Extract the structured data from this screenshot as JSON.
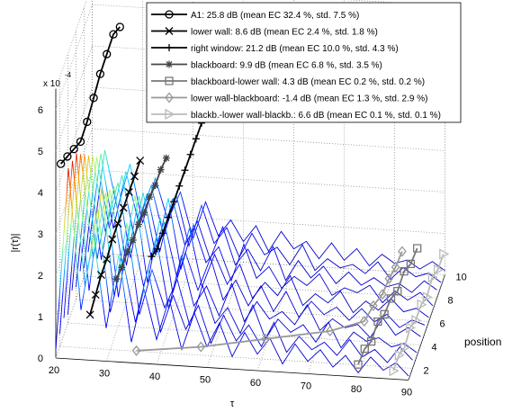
{
  "chart_data": {
    "type": "waterfall",
    "xlabel": "τ",
    "ylabel": "position",
    "zlabel": "|r(τ)|",
    "zexponent": {
      "base": "x 10",
      "power": "-4"
    },
    "xlim": [
      20,
      90
    ],
    "xticks": [
      20,
      30,
      40,
      50,
      60,
      70,
      80,
      90
    ],
    "ylim": [
      1,
      10
    ],
    "yticks": [
      2,
      4,
      6,
      8,
      10
    ],
    "zlim": [
      0,
      6.5
    ],
    "zticks": [
      0,
      1,
      2,
      3,
      4,
      5,
      6
    ],
    "grid": true,
    "legend": "top-right",
    "positions": [
      1,
      2,
      3,
      4,
      5,
      6,
      7,
      8,
      9,
      10
    ],
    "tau": [
      20,
      22.5,
      25,
      27.5,
      30,
      32.5,
      35,
      37.5,
      40,
      42.5,
      45,
      47.5,
      50,
      52.5,
      55,
      57.5,
      60,
      62.5,
      65,
      67.5,
      70,
      72.5,
      75,
      77.5,
      80,
      82.5,
      85,
      87.5,
      90
    ],
    "traces": [
      [
        0.2,
        4.6,
        1.2,
        3.0,
        0.8,
        2.6,
        0.5,
        1.8,
        0.6,
        1.6,
        0.4,
        1.3,
        0.5,
        1.1,
        0.3,
        0.9,
        0.4,
        0.8,
        0.2,
        0.7,
        0.3,
        0.6,
        0.2,
        0.5,
        0.1,
        0.5,
        0.2,
        0.4,
        0.1
      ],
      [
        0.3,
        4.5,
        1.5,
        3.4,
        0.9,
        2.2,
        0.7,
        2.0,
        0.5,
        1.4,
        0.6,
        1.2,
        0.3,
        1.0,
        0.4,
        0.8,
        0.3,
        0.9,
        0.2,
        0.6,
        0.3,
        0.5,
        0.2,
        0.6,
        0.2,
        0.4,
        0.1,
        0.5,
        0.2
      ],
      [
        0.4,
        4.4,
        1.1,
        3.6,
        1.0,
        2.8,
        0.6,
        1.7,
        0.8,
        1.5,
        0.4,
        1.4,
        0.5,
        0.9,
        0.3,
        1.0,
        0.2,
        0.7,
        0.4,
        0.6,
        0.2,
        0.7,
        0.1,
        0.5,
        0.3,
        0.4,
        0.2,
        0.3,
        0.1
      ],
      [
        0.2,
        4.1,
        1.6,
        3.2,
        0.7,
        2.5,
        1.0,
        2.2,
        0.5,
        1.8,
        0.6,
        1.1,
        0.4,
        1.2,
        0.3,
        0.8,
        0.4,
        0.6,
        0.3,
        0.8,
        0.2,
        0.5,
        0.3,
        0.4,
        0.1,
        0.6,
        0.2,
        0.4,
        0.2
      ],
      [
        0.5,
        3.8,
        1.3,
        3.0,
        1.2,
        2.9,
        0.8,
        2.4,
        0.6,
        1.6,
        0.7,
        1.5,
        0.5,
        1.0,
        0.4,
        0.9,
        0.3,
        0.8,
        0.2,
        0.6,
        0.3,
        0.5,
        0.2,
        0.5,
        0.2,
        0.4,
        0.1,
        0.3,
        0.2
      ],
      [
        0.3,
        3.5,
        1.0,
        2.8,
        0.9,
        2.6,
        1.1,
        2.0,
        0.7,
        1.9,
        0.5,
        1.3,
        0.6,
        1.1,
        0.3,
        0.7,
        0.4,
        0.9,
        0.2,
        0.5,
        0.3,
        0.6,
        0.1,
        0.4,
        0.2,
        0.5,
        0.2,
        0.3,
        0.1
      ],
      [
        0.4,
        3.2,
        1.4,
        2.6,
        0.8,
        2.4,
        0.9,
        2.3,
        0.6,
        1.7,
        0.8,
        1.2,
        0.4,
        1.3,
        0.5,
        0.8,
        0.3,
        0.6,
        0.4,
        0.7,
        0.2,
        0.4,
        0.3,
        0.5,
        0.1,
        0.4,
        0.2,
        0.4,
        0.1
      ],
      [
        0.2,
        2.9,
        1.2,
        2.5,
        1.0,
        2.1,
        0.7,
        2.0,
        0.9,
        1.5,
        0.6,
        1.4,
        0.5,
        0.9,
        0.4,
        1.0,
        0.2,
        0.7,
        0.3,
        0.6,
        0.2,
        0.5,
        0.2,
        0.4,
        0.2,
        0.3,
        0.1,
        0.4,
        0.2
      ],
      [
        0.3,
        2.7,
        0.9,
        2.3,
        1.1,
        2.0,
        0.8,
        1.8,
        0.6,
        1.6,
        0.7,
        1.1,
        0.4,
        1.0,
        0.5,
        0.7,
        0.3,
        0.8,
        0.2,
        0.5,
        0.3,
        0.4,
        0.2,
        0.5,
        0.1,
        0.4,
        0.2,
        0.3,
        0.1
      ],
      [
        0.2,
        2.5,
        1.1,
        2.2,
        0.8,
        1.9,
        0.9,
        1.6,
        0.5,
        1.4,
        0.6,
        1.0,
        0.5,
        0.9,
        0.3,
        0.8,
        0.4,
        0.6,
        0.2,
        0.6,
        0.2,
        0.5,
        0.1,
        0.4,
        0.2,
        0.3,
        0.1,
        0.3,
        0.1
      ]
    ],
    "series": [
      {
        "name": "A1: 25.8 dB (mean EC 32.4 %, std. 7.5 %)",
        "color": "#000000",
        "marker": "o",
        "tau": [
          21,
          21.5,
          22,
          22.5,
          23,
          23.5,
          24,
          24.5,
          25,
          25.5
        ],
        "values": [
          4.7,
          4.6,
          4.5,
          4.4,
          4.6,
          4.9,
          5.2,
          5.4,
          5.6,
          5.5
        ]
      },
      {
        "name": "lower wall: 8.6 dB (mean EC 2.4 %, std. 1.8 %)",
        "color": "#000000",
        "marker": "x",
        "tau": [
          26.8,
          27.1,
          27.4,
          27.7,
          28,
          28.3,
          28.6,
          28.9,
          29.2,
          29.5
        ],
        "values": [
          1.1,
          1.3,
          1.5,
          1.6,
          1.8,
          1.9,
          2.0,
          2.1,
          2.2,
          2.3
        ]
      },
      {
        "name": "right window: 21.2 dB (mean EC 10.0 %, std. 4.3 %)",
        "color": "#000000",
        "marker": "+",
        "tau": [
          39,
          39.3,
          39.6,
          39.9,
          40.2,
          40.5,
          40.8,
          41.1,
          41.4,
          41.7
        ],
        "values": [
          2.6,
          2.5,
          2.6,
          2.7,
          2.8,
          2.9,
          3.0,
          3.1,
          3.2,
          3.3
        ]
      },
      {
        "name": "blackboard: 9.9 dB (mean EC 6.8 %, std. 3.5 %)",
        "color": "#444444",
        "marker": "*",
        "tau": [
          32,
          32.3,
          32.6,
          32.9,
          33.2,
          33.5,
          33.8,
          34.1,
          34.4,
          34.7
        ],
        "values": [
          2.0,
          2.0,
          2.1,
          2.1,
          2.2,
          2.2,
          2.3,
          2.3,
          2.4,
          2.4
        ]
      },
      {
        "name": "blackboard-lower wall: 4.3 dB (mean EC 0.2 %, std. 0.2 %)",
        "color": "#777777",
        "marker": "s",
        "tau": [
          80,
          80.5,
          81,
          81.5,
          82,
          82.5,
          83,
          83.5,
          84,
          84.5
        ],
        "values": [
          0.3,
          0.4,
          0.3,
          0.5,
          0.4,
          0.5,
          0.4,
          0.6,
          0.5,
          0.6
        ]
      },
      {
        "name": "lower wall-blackboard: -1.4 dB (mean EC 1.3 %, std. 2.9 %)",
        "color": "#999999",
        "marker": "d",
        "tau": [
          36,
          48,
          60,
          72,
          78,
          79,
          80,
          80.5,
          81,
          81.5
        ],
        "values": [
          0.3,
          0.2,
          0.2,
          0.2,
          0.2,
          0.3,
          0.3,
          0.4,
          0.4,
          0.5
        ]
      },
      {
        "name": "blackb.-lower wall-blackb.: 6.6 dB (mean EC 0.1 %, std. 0.1 %)",
        "color": "#bbbbbb",
        "marker": ">",
        "tau": [
          87,
          87.3,
          87.6,
          87.9,
          88.2,
          88.5,
          88.8,
          89.1,
          89.4,
          89.7
        ],
        "values": [
          0.2,
          0.3,
          0.2,
          0.4,
          0.3,
          0.4,
          0.3,
          0.5,
          0.4,
          0.5
        ]
      }
    ]
  }
}
